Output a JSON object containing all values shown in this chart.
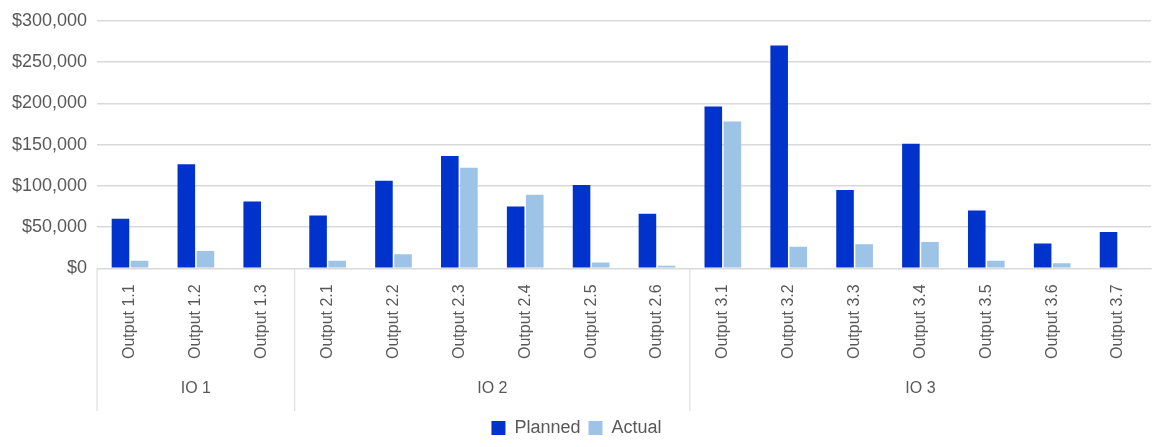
{
  "chart_data": {
    "type": "bar",
    "categories": [
      "Output 1.1",
      "Output 1.2",
      "Output 1.3",
      "Output 2.1",
      "Output 2.2",
      "Output 2.3",
      "Output 2.4",
      "Output 2.5",
      "Output 2.6",
      "Output 3.1",
      "Output 3.2",
      "Output 3.3",
      "Output 3.4",
      "Output 3.5",
      "Output 3.6",
      "Output 3.7"
    ],
    "series": [
      {
        "name": "Planned",
        "color": "#0033cc",
        "values": [
          60000,
          126000,
          81000,
          64000,
          106000,
          136000,
          75000,
          101000,
          66000,
          196000,
          270000,
          95000,
          151000,
          70000,
          30000,
          44000
        ]
      },
      {
        "name": "Actual",
        "color": "#9dc3e6",
        "values": [
          9000,
          21000,
          null,
          9000,
          17000,
          122000,
          89000,
          7000,
          3000,
          178000,
          26000,
          29000,
          32000,
          9000,
          6000,
          null
        ]
      }
    ],
    "annotations": [
      "IO 1",
      "IO 2",
      "IO 3"
    ],
    "ylim": [
      0,
      300000
    ],
    "yticks": [
      {
        "value": 0,
        "label": "$0"
      },
      {
        "value": 50000,
        "label": "$50,000"
      },
      {
        "value": 100000,
        "label": "$100,000"
      },
      {
        "value": 150000,
        "label": "$150,000"
      },
      {
        "value": 200000,
        "label": "$200,000"
      },
      {
        "value": 250000,
        "label": "$250,000"
      },
      {
        "value": 300000,
        "label": "$300,000"
      }
    ],
    "grid": "y",
    "legend": "bottom"
  }
}
